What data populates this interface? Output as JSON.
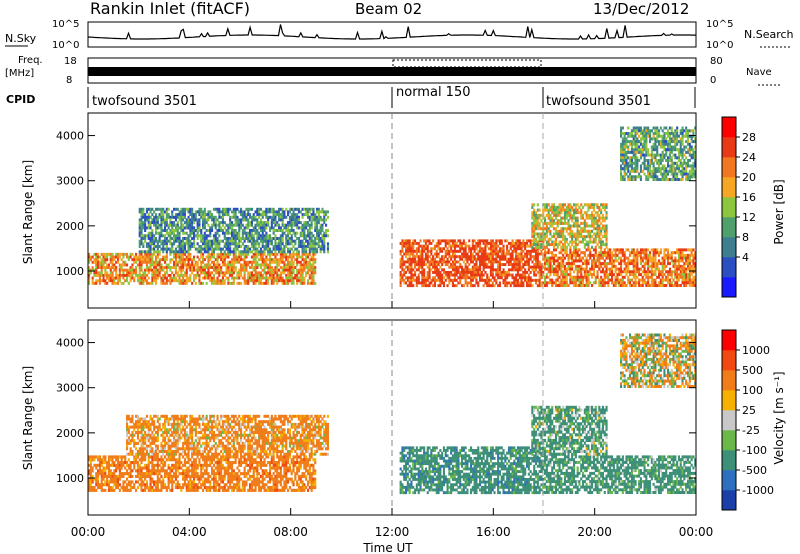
{
  "header": {
    "station": "Rankin Inlet (fitACF)",
    "beam": "Beam 02",
    "date": "13/Dec/2012"
  },
  "noise_panel": {
    "left_label": "N.Sky",
    "left_ticks": [
      "10^5",
      "10^0"
    ],
    "right_ticks": [
      "10^5",
      "10^0"
    ],
    "right_label": "N.Search"
  },
  "freq_panel": {
    "left_label_1": "Freq.",
    "left_label_2": "[MHz]",
    "left_ticks": [
      "18",
      "8"
    ],
    "right_ticks": [
      "80",
      "0"
    ],
    "right_label": "Nave"
  },
  "cpid": {
    "label": "CPID",
    "segments": [
      {
        "name": "twofsound 3501",
        "start_h": 0,
        "end_h": 12
      },
      {
        "name": "normal 150",
        "start_h": 12,
        "end_h": 18
      },
      {
        "name": "twofsound 3501",
        "start_h": 18,
        "end_h": 24
      }
    ]
  },
  "axes": {
    "ylabel": "Slant Range [km]",
    "yticks": [
      "1000",
      "2000",
      "3000",
      "4000"
    ],
    "xlabel": "Time UT",
    "xticks": [
      "00:00",
      "04:00",
      "08:00",
      "12:00",
      "16:00",
      "20:00",
      "00:00"
    ]
  },
  "colorbars": {
    "power": {
      "label": "Power [dB]",
      "ticks": [
        "28",
        "24",
        "20",
        "16",
        "12",
        "8",
        "4"
      ],
      "colors": [
        "#1a1aff",
        "#2b4fc2",
        "#3d7f8f",
        "#4fa06d",
        "#8cc63f",
        "#f5a623",
        "#f07820",
        "#e83a14",
        "#ff0000"
      ]
    },
    "velocity": {
      "label": "Velocity [m s⁻¹]",
      "ticks": [
        "1000",
        "500",
        "100",
        "25",
        "-25",
        "-100",
        "-500",
        "-1000"
      ],
      "colors": [
        "#1a3fa8",
        "#2f6fbf",
        "#3d8f78",
        "#6ab84a",
        "#c8c8c8",
        "#f5b000",
        "#f07d1a",
        "#f04a10",
        "#ff0000"
      ]
    }
  },
  "chart_data": [
    {
      "type": "heatmap",
      "title": "Power [dB]",
      "xlabel": "Time UT",
      "ylabel": "Slant Range [km]",
      "xlim_hours": [
        0,
        24
      ],
      "ylim_km": [
        180,
        4500
      ],
      "regions": [
        {
          "t0": 0.0,
          "t1": 9.0,
          "r0": 700,
          "r1": 1400,
          "value_db": 24
        },
        {
          "t0": 2.0,
          "t1": 9.5,
          "r0": 1400,
          "r1": 2400,
          "value_db": 12
        },
        {
          "t0": 12.3,
          "t1": 18.0,
          "r0": 650,
          "r1": 1700,
          "value_db": 30
        },
        {
          "t0": 18.0,
          "t1": 24.0,
          "r0": 650,
          "r1": 1500,
          "value_db": 26
        },
        {
          "t0": 17.5,
          "t1": 20.5,
          "r0": 1500,
          "r1": 2500,
          "value_db": 20
        },
        {
          "t0": 21.0,
          "t1": 24.0,
          "r0": 3000,
          "r1": 4200,
          "value_db": 14
        }
      ]
    },
    {
      "type": "heatmap",
      "title": "Velocity [m s-1]",
      "xlabel": "Time UT",
      "ylabel": "Slant Range [km]",
      "xlim_hours": [
        0,
        24
      ],
      "ylim_km": [
        180,
        4500
      ],
      "regions": [
        {
          "t0": 0.0,
          "t1": 9.0,
          "r0": 700,
          "r1": 1500,
          "value_ms": 300
        },
        {
          "t0": 1.5,
          "t1": 9.5,
          "r0": 1500,
          "r1": 2400,
          "value_ms": 200
        },
        {
          "t0": 12.3,
          "t1": 18.0,
          "r0": 650,
          "r1": 1700,
          "value_ms": -300
        },
        {
          "t0": 18.0,
          "t1": 24.0,
          "r0": 650,
          "r1": 1500,
          "value_ms": -250
        },
        {
          "t0": 17.5,
          "t1": 20.5,
          "r0": 1500,
          "r1": 2600,
          "value_ms": -200
        },
        {
          "t0": 21.0,
          "t1": 24.0,
          "r0": 3000,
          "r1": 4200,
          "value_ms": 50
        }
      ]
    }
  ]
}
